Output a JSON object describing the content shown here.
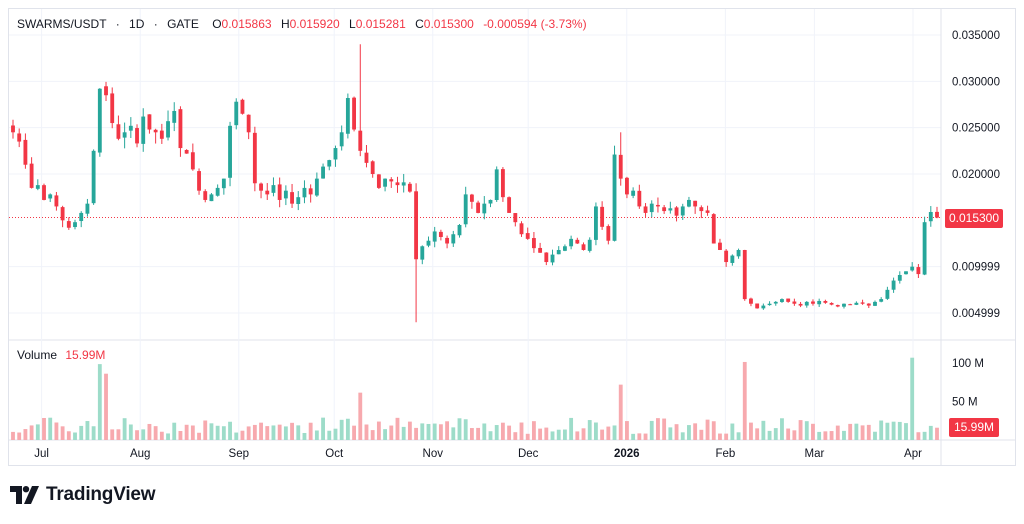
{
  "legend": {
    "symbol": "SWARMS/USDT",
    "interval": "1D",
    "exchange": "GATE",
    "open_label": "O",
    "open": "0.015863",
    "high_label": "H",
    "high": "0.015920",
    "low_label": "L",
    "low": "0.015281",
    "close_label": "C",
    "close": "0.015300",
    "change": "-0.000594 (-3.73%)"
  },
  "volume_legend": {
    "label": "Volume",
    "value": "15.99M"
  },
  "price_tag": "0.015300",
  "volume_tag": "15.99M",
  "brand": "TradingView",
  "colors": {
    "up": "#26a69a",
    "down": "#f23645",
    "up_volume": "#9ddcc9",
    "down_volume": "#f7a9ae",
    "grid": "#f0f3fa",
    "last_price_line": "#f23645"
  },
  "chart_data": {
    "type": "candlestick",
    "title": "SWARMS/USDT · 1D · GATE",
    "x_tick_labels": [
      "Jul",
      "Aug",
      "Sep",
      "Oct",
      "Nov",
      "Dec",
      "2026",
      "Feb",
      "Mar",
      "Apr"
    ],
    "x_tick_dates": [
      "2025-07-01",
      "2025-08-01",
      "2025-09-01",
      "2025-10-01",
      "2025-11-01",
      "2025-12-01",
      "2026-01-01",
      "2026-02-01",
      "2026-03-01",
      "2026-04-01"
    ],
    "y_tick_labels": [
      "0.035000",
      "0.030000",
      "0.025000",
      "0.020000",
      "0.015300",
      "0.009999",
      "0.004999"
    ],
    "ylim": [
      0.0025,
      0.0375
    ],
    "last_price": 0.0153,
    "series_close": [
      0.0245,
      0.0235,
      0.021,
      0.0185,
      0.0188,
      0.0172,
      0.0178,
      0.0165,
      0.015,
      0.0142,
      0.0148,
      0.0158,
      0.0168,
      0.0225,
      0.0292,
      0.0285,
      0.0255,
      0.0238,
      0.0245,
      0.0252,
      0.0233,
      0.0262,
      0.0248,
      0.0245,
      0.0238,
      0.0257,
      0.0268,
      0.0228,
      0.0222,
      0.0205,
      0.0182,
      0.0172,
      0.0178,
      0.0185,
      0.0195,
      0.0252,
      0.0278,
      0.0265,
      0.0245,
      0.019,
      0.0182,
      0.0178,
      0.0188,
      0.0172,
      0.0182,
      0.0168,
      0.0175,
      0.0185,
      0.0178,
      0.0195,
      0.0208,
      0.0215,
      0.0228,
      0.0245,
      0.0282,
      0.0248,
      0.0225,
      0.0212,
      0.02,
      0.0185,
      0.0195,
      0.0192,
      0.0188,
      0.0191,
      0.0181,
      0.0108,
      0.0122,
      0.0128,
      0.0138,
      0.0132,
      0.0125,
      0.0135,
      0.0145,
      0.0178,
      0.017,
      0.0158,
      0.0168,
      0.0172,
      0.0205,
      0.0175,
      0.0158,
      0.0148,
      0.0135,
      0.013,
      0.012,
      0.0115,
      0.0105,
      0.0113,
      0.0118,
      0.0122,
      0.013,
      0.0125,
      0.0118,
      0.0129,
      0.0165,
      0.0143,
      0.0128,
      0.0221,
      0.0195,
      0.0178,
      0.0182,
      0.0165,
      0.0158,
      0.0168,
      0.0165,
      0.016,
      0.0163,
      0.0155,
      0.0165,
      0.0172,
      0.0165,
      0.016,
      0.0158,
      0.0125,
      0.0118,
      0.0105,
      0.0112,
      0.0118,
      0.0065,
      0.006,
      0.0055,
      0.0058,
      0.006,
      0.0062,
      0.0065,
      0.0062,
      0.006,
      0.0058,
      0.0062,
      0.006,
      0.0063,
      0.0061,
      0.0059,
      0.0057,
      0.006,
      0.0059,
      0.0061,
      0.006,
      0.0058,
      0.0062,
      0.0065,
      0.0075,
      0.0085,
      0.0091,
      0.0095,
      0.01,
      0.0092,
      0.0148,
      0.0159,
      0.0153
    ],
    "volume_unit": "M",
    "volume_axis_labels": [
      "100 M",
      "50 M"
    ],
    "volume_ylim": [
      0,
      125
    ],
    "volume_last": 15.99
  }
}
